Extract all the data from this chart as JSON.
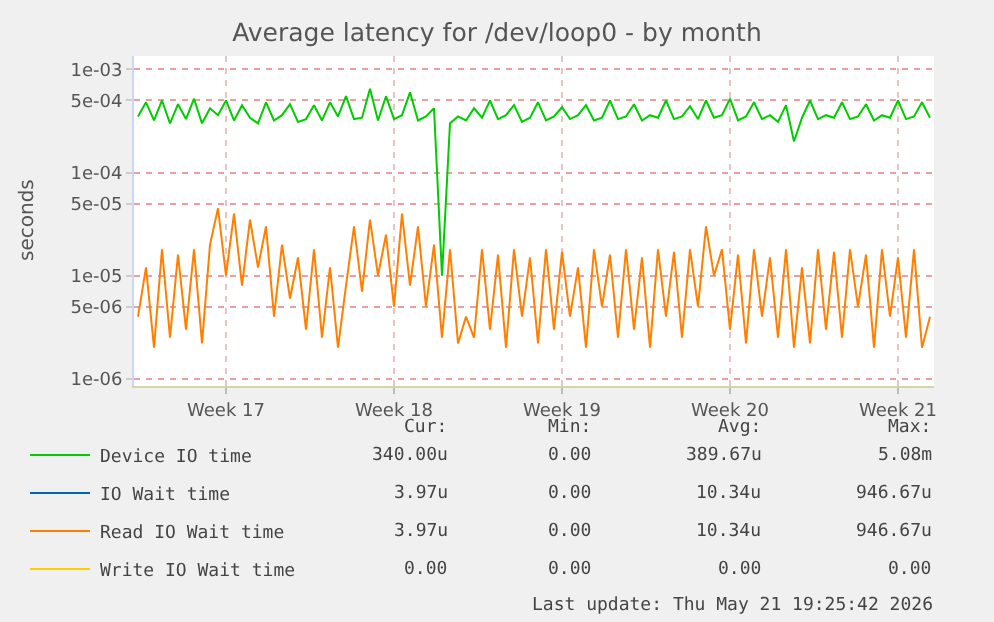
{
  "chart_data": {
    "type": "line",
    "title": "Average latency for /dev/loop0 - by month",
    "ylabel": "seconds",
    "categories": [
      null,
      null,
      null,
      null,
      null,
      null,
      null,
      null,
      null,
      null,
      null,
      "Week 17",
      null,
      null,
      null,
      null,
      null,
      null,
      null,
      null,
      null,
      null,
      null,
      null,
      null,
      null,
      null,
      null,
      null,
      null,
      null,
      null,
      "Week 18",
      null,
      null,
      null,
      null,
      null,
      null,
      null,
      null,
      null,
      null,
      null,
      null,
      null,
      null,
      null,
      null,
      null,
      null,
      null,
      null,
      "Week 19",
      null,
      null,
      null,
      null,
      null,
      null,
      null,
      null,
      null,
      null,
      null,
      null,
      null,
      null,
      null,
      null,
      null,
      null,
      null,
      null,
      "Week 20",
      null,
      null,
      null,
      null,
      null,
      null,
      null,
      null,
      null,
      null,
      null,
      null,
      null,
      null,
      null,
      null,
      null,
      null,
      null,
      null,
      "Week 21",
      null,
      null,
      null,
      null
    ],
    "series": [
      {
        "name": "Device IO time",
        "color": "#00cc00",
        "values": [
          0.00035,
          0.00048,
          0.00032,
          0.0005,
          0.0003,
          0.00046,
          0.00033,
          0.00052,
          0.0003,
          0.00042,
          0.00036,
          0.0005,
          0.00032,
          0.00045,
          0.00034,
          0.0003,
          0.00048,
          0.00032,
          0.00036,
          0.00046,
          0.00031,
          0.00033,
          0.00045,
          0.00032,
          0.00048,
          0.00035,
          0.00055,
          0.00033,
          0.00034,
          0.00065,
          0.00032,
          0.00055,
          0.00033,
          0.00036,
          0.0006,
          0.00032,
          0.00035,
          0.00042,
          1e-05,
          0.0003,
          0.00035,
          0.00032,
          0.00042,
          0.00034,
          0.0005,
          0.00033,
          0.00036,
          0.00045,
          0.00031,
          0.00034,
          0.00048,
          0.00032,
          0.00035,
          0.00043,
          0.00033,
          0.00036,
          0.00045,
          0.00032,
          0.00034,
          0.0005,
          0.00033,
          0.00035,
          0.00046,
          0.00032,
          0.00036,
          0.00034,
          0.0005,
          0.00033,
          0.00035,
          0.00044,
          0.00033,
          0.0005,
          0.00034,
          0.00036,
          0.00052,
          0.00032,
          0.00035,
          0.00048,
          0.00033,
          0.00036,
          0.00031,
          0.00045,
          0.0002,
          0.00034,
          0.0005,
          0.00033,
          0.00036,
          0.00034,
          0.00048,
          0.00033,
          0.00035,
          0.00046,
          0.00032,
          0.00036,
          0.00034,
          0.0005,
          0.00033,
          0.00035,
          0.00048,
          0.00034
        ]
      },
      {
        "name": "IO Wait time",
        "color": "#0066b3",
        "values": [
          null,
          null,
          null,
          null,
          null,
          null,
          null,
          null,
          null,
          null,
          null,
          null,
          null,
          null,
          null,
          null,
          null,
          null,
          null,
          null,
          null,
          null,
          null,
          null,
          null,
          null,
          null,
          null,
          null,
          null,
          null,
          null,
          null,
          null,
          null,
          null,
          null,
          null,
          null,
          null,
          null,
          null,
          null,
          null,
          null,
          null,
          null,
          null,
          null,
          null,
          null,
          null,
          null,
          null,
          null,
          null,
          null,
          null,
          null,
          null,
          null,
          null,
          null,
          null,
          null,
          null,
          null,
          null,
          null,
          null,
          null,
          null,
          null,
          null,
          null,
          null,
          null,
          null,
          null,
          null,
          null,
          null,
          null,
          null,
          null,
          null,
          null,
          null,
          null,
          null,
          null,
          null,
          null,
          null,
          null,
          null,
          null,
          null,
          null,
          null
        ]
      },
      {
        "name": "Read IO Wait time",
        "color": "#ff8000",
        "values": [
          4e-06,
          1.2e-05,
          2e-06,
          1.8e-05,
          2.5e-06,
          1.6e-05,
          3e-06,
          1.8e-05,
          2.2e-06,
          2e-05,
          4.5e-05,
          1e-05,
          4e-05,
          8e-06,
          3.5e-05,
          1.2e-05,
          3e-05,
          4e-06,
          2e-05,
          6e-06,
          1.5e-05,
          3e-06,
          1.8e-05,
          2.5e-06,
          1.2e-05,
          2e-06,
          8e-06,
          3e-05,
          7e-06,
          3.5e-05,
          1e-05,
          2.5e-05,
          5e-06,
          4e-05,
          8e-06,
          3e-05,
          5e-06,
          2e-05,
          2.5e-06,
          1.8e-05,
          2.2e-06,
          4e-06,
          2.5e-06,
          1.8e-05,
          3e-06,
          1.6e-05,
          2e-06,
          1.8e-05,
          4e-06,
          1.5e-05,
          2.2e-06,
          1.8e-05,
          3e-06,
          1.7e-05,
          4e-06,
          1.2e-05,
          2e-06,
          1.8e-05,
          5e-06,
          1.6e-05,
          2.5e-06,
          1.8e-05,
          3e-06,
          1.5e-05,
          2e-06,
          1.8e-05,
          4e-06,
          1.7e-05,
          2.5e-06,
          1.8e-05,
          5e-06,
          3e-05,
          1e-05,
          1.8e-05,
          3e-06,
          1.6e-05,
          2.2e-06,
          1.8e-05,
          4e-06,
          1.5e-05,
          2.5e-06,
          1.8e-05,
          2e-06,
          1.2e-05,
          2.2e-06,
          1.8e-05,
          3e-06,
          1.7e-05,
          2.5e-06,
          1.8e-05,
          5e-06,
          1.6e-05,
          2e-06,
          1.8e-05,
          4e-06,
          1.5e-05,
          2.5e-06,
          1.8e-05,
          2e-06,
          4e-06
        ]
      },
      {
        "name": "Write IO Wait time",
        "color": "#ffcc00",
        "values": [
          null,
          null,
          null,
          null,
          null,
          null,
          null,
          null,
          null,
          null,
          null,
          null,
          null,
          null,
          null,
          null,
          null,
          null,
          null,
          null,
          null,
          null,
          null,
          null,
          null,
          null,
          null,
          null,
          null,
          null,
          null,
          null,
          null,
          null,
          null,
          null,
          null,
          null,
          null,
          null,
          null,
          null,
          null,
          null,
          null,
          null,
          null,
          null,
          null,
          null,
          null,
          null,
          null,
          null,
          null,
          null,
          null,
          null,
          null,
          null,
          null,
          null,
          null,
          null,
          null,
          null,
          null,
          null,
          null,
          null,
          null,
          null,
          null,
          null,
          null,
          null,
          null,
          null,
          null,
          null,
          null,
          null,
          null,
          null,
          null,
          null,
          null,
          null,
          null,
          null,
          null,
          null,
          null,
          null,
          null,
          null,
          null,
          null,
          null,
          null
        ]
      }
    ],
    "ylim": [
      8.5e-07,
      0.00135
    ],
    "yticks": [
      {
        "value": 0.001,
        "label": "1e-03"
      },
      {
        "value": 0.0005,
        "label": "5e-04"
      },
      {
        "value": 0.0001,
        "label": "1e-04"
      },
      {
        "value": 5e-05,
        "label": "5e-05"
      },
      {
        "value": 1e-05,
        "label": "1e-05"
      },
      {
        "value": 5e-06,
        "label": "5e-06"
      },
      {
        "value": 1e-06,
        "label": "1e-06"
      }
    ],
    "log": true,
    "grid": true,
    "legend": "bottom left",
    "annotations": [
      "Cur:",
      "Min:",
      "Avg:",
      "Max:",
      "340.00u",
      "0.00",
      "389.67u",
      "5.08m",
      "3.97u",
      "0.00",
      "10.34u",
      "946.67u",
      "3.97u",
      "0.00",
      "10.34u",
      "946.67u",
      "0.00",
      "0.00",
      "0.00",
      "0.00",
      "Last update: Thu May 21 19:25:42 2026"
    ]
  }
}
